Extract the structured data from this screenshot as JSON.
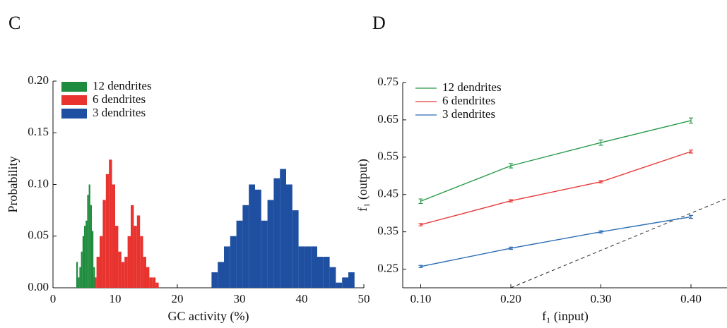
{
  "chart_data": [
    {
      "type": "histogram",
      "panel_label": "C",
      "x_label": "GC activity (%)",
      "y_label": "Probability",
      "xlim": [
        0,
        50
      ],
      "xticks": [
        0,
        10,
        20,
        30,
        40,
        50
      ],
      "ylim": [
        0,
        0.2
      ],
      "yticks": [
        {
          "value": 0,
          "label": "0.00"
        },
        0.05,
        {
          "value": 0.1,
          "label": "0.10"
        },
        0.15,
        {
          "value": 0.2,
          "label": "0.20"
        }
      ],
      "legend": "upper left",
      "series": [
        {
          "name": "12 dendrites",
          "color": "#1e8c3e",
          "bins": [
            3.75,
            4,
            4.25,
            4.5,
            4.75,
            5,
            5.25,
            5.5,
            5.75,
            6,
            6.25,
            6.5,
            6.75
          ],
          "values": [
            0.025,
            0.01,
            0.02,
            0.035,
            0.05,
            0.06,
            0.065,
            0.09,
            0.1,
            0.08,
            0.055,
            0.02
          ]
        },
        {
          "name": "6 dendrites",
          "color": "#e8332f",
          "bins": [
            6.5,
            7,
            7.5,
            8,
            8.5,
            9,
            9.5,
            10,
            10.5,
            11,
            11.5,
            12,
            12.5,
            13,
            13.5,
            14,
            14.5,
            15,
            15.5,
            16,
            16.5,
            17
          ],
          "values": [
            0.01,
            0.03,
            0.05,
            0.085,
            0.11,
            0.124,
            0.1,
            0.06,
            0.035,
            0.025,
            0.03,
            0.05,
            0.08,
            0.06,
            0.07,
            0.05,
            0.03,
            0.02,
            0.01,
            0.01,
            0.005
          ]
        },
        {
          "name": "3 dendrites",
          "color": "#1f4fa0",
          "bins": [
            25.5,
            26.5,
            27.5,
            28.5,
            29.5,
            30.5,
            31.5,
            32.5,
            33.5,
            34.5,
            35.5,
            36.5,
            37.5,
            38.5,
            39.5,
            40.5,
            41.5,
            42.5,
            43.5,
            44.5,
            45.5,
            46.5,
            47.5,
            48.5
          ],
          "values": [
            0.015,
            0.025,
            0.04,
            0.05,
            0.065,
            0.08,
            0.1,
            0.095,
            0.065,
            0.085,
            0.106,
            0.115,
            0.1,
            0.075,
            0.04,
            0.04,
            0.04,
            0.03,
            0.03,
            0.02,
            0.005,
            0.01,
            0.015
          ]
        }
      ]
    },
    {
      "type": "line",
      "panel_label": "D",
      "x_label": "f₁ (input)",
      "y_label": "f₁ (output)",
      "x": [
        0.1,
        0.2,
        0.3,
        0.4
      ],
      "xlim": [
        0.08,
        0.44
      ],
      "xticks": [
        {
          "value": 0.1,
          "label": "0.10"
        },
        {
          "value": 0.2,
          "label": "0.20"
        },
        {
          "value": 0.3,
          "label": "0.30"
        },
        {
          "value": 0.4,
          "label": "0.40"
        }
      ],
      "ylim": [
        0.2,
        0.75
      ],
      "yticks": [
        0.25,
        0.35,
        0.45,
        0.55,
        0.65,
        0.75
      ],
      "legend": "upper left",
      "identity_line": true,
      "series": [
        {
          "name": "12 dendrites",
          "color": "#2a9a4a",
          "values": [
            0.432,
            0.527,
            0.589,
            0.648
          ],
          "errors": [
            0.006,
            0.006,
            0.007,
            0.007
          ]
        },
        {
          "name": "6 dendrites",
          "color": "#e83a3a",
          "values": [
            0.369,
            0.433,
            0.484,
            0.565
          ],
          "errors": [
            0.003,
            0.003,
            0.003,
            0.004
          ]
        },
        {
          "name": "3 dendrites",
          "color": "#2c6db5",
          "values": [
            0.257,
            0.306,
            0.35,
            0.39
          ],
          "errors": [
            0.003,
            0.003,
            0.003,
            0.004
          ]
        }
      ]
    }
  ]
}
